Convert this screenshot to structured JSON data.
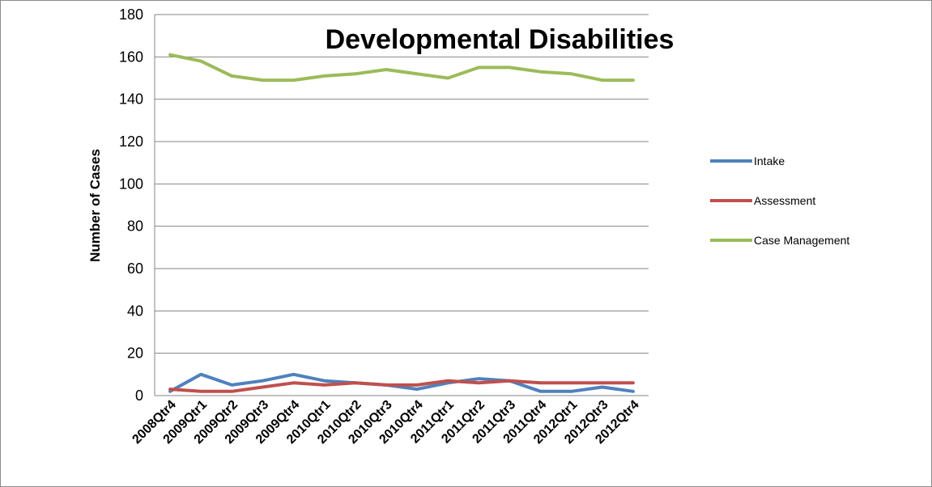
{
  "chart_data": {
    "type": "line",
    "title": "Developmental Disabilities",
    "xlabel": "",
    "ylabel": "Number of Cases",
    "ylim": [
      0,
      180
    ],
    "ytick_step": 20,
    "grid": true,
    "legend_position": "right",
    "categories": [
      "2008Qtr4",
      "2009Qtr1",
      "2009Qtr2",
      "2009Qtr3",
      "2009Qtr4",
      "2010Qtr1",
      "2010Qtr2",
      "2010Qtr3",
      "2010Qtr4",
      "2011Qtr1",
      "2011Qtr2",
      "2011Qtr3",
      "2011Qtr4",
      "2012Qtr1",
      "2012Qtr3",
      "2012Qtr4"
    ],
    "series": [
      {
        "name": "Intake",
        "color": "#4f81bd",
        "values": [
          2,
          10,
          5,
          7,
          10,
          7,
          6,
          5,
          3,
          6,
          8,
          7,
          2,
          2,
          4,
          2
        ]
      },
      {
        "name": "Assessment",
        "color": "#c0504d",
        "values": [
          3,
          2,
          2,
          4,
          6,
          5,
          6,
          5,
          5,
          7,
          6,
          7,
          6,
          6,
          6,
          6
        ]
      },
      {
        "name": "Case Management",
        "color": "#9bbb59",
        "values": [
          161,
          158,
          151,
          149,
          149,
          151,
          152,
          154,
          152,
          150,
          155,
          155,
          153,
          152,
          149,
          149
        ]
      }
    ]
  }
}
